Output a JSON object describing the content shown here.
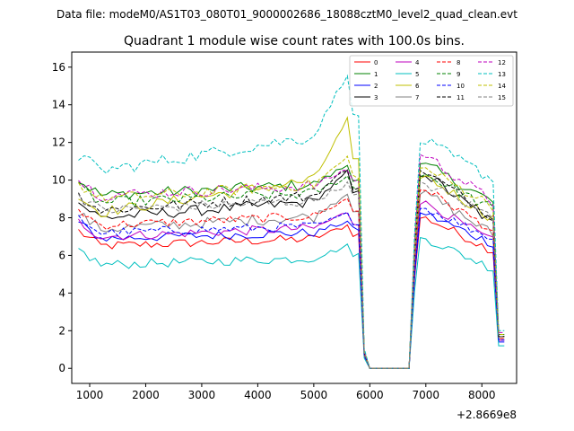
{
  "chart_data": {
    "type": "line",
    "suptitle": "Data file: modeM0/AS1T03_080T01_9000002686_18088cztM0_level2_quad_clean.evt",
    "title": "Quadrant 1 module wise count rates with 100.0s bins.",
    "xlabel": "",
    "ylabel": "",
    "x_offset_label": "+2.8669e8",
    "x_range": [
      800,
      8400
    ],
    "xlim": [
      680,
      8620
    ],
    "ylim": [
      -0.8,
      16.8
    ],
    "x_ticks": [
      1000,
      2000,
      3000,
      4000,
      5000,
      6000,
      7000,
      8000
    ],
    "x_tick_labels": [
      "1000",
      "2000",
      "3000",
      "4000",
      "5000",
      "6000",
      "7000",
      "8000"
    ],
    "y_ticks": [
      0,
      2,
      4,
      6,
      8,
      10,
      12,
      14,
      16
    ],
    "y_tick_labels": [
      "0",
      "2",
      "4",
      "6",
      "8",
      "10",
      "12",
      "14",
      "16"
    ],
    "gap": {
      "drop_start": 5800,
      "zero_start": 6000,
      "zero_end": 6750,
      "rise_end": 6900,
      "end_drop": 8250
    },
    "legend": {
      "placement": "upper right",
      "columns": 4
    },
    "series": [
      {
        "name": "0",
        "color": "#ff0000",
        "dash": "solid",
        "level_start": 6.5,
        "level_peak": 7.6,
        "post_level": 8.0,
        "end_value": 1.5,
        "noise": 0.25
      },
      {
        "name": "1",
        "color": "#008000",
        "dash": "solid",
        "level_start": 9.2,
        "level_peak": 10.8,
        "post_level": 10.8,
        "end_value": 1.8,
        "noise": 0.3
      },
      {
        "name": "2",
        "color": "#0000ff",
        "dash": "solid",
        "level_start": 6.9,
        "level_peak": 7.8,
        "post_level": 8.2,
        "end_value": 1.4,
        "noise": 0.25
      },
      {
        "name": "3",
        "color": "#000000",
        "dash": "solid",
        "level_start": 8.0,
        "level_peak": 10.4,
        "post_level": 10.3,
        "end_value": 1.7,
        "noise": 0.3
      },
      {
        "name": "4",
        "color": "#bf00bf",
        "dash": "solid",
        "level_start": 7.0,
        "level_peak": 8.3,
        "post_level": 8.8,
        "end_value": 1.5,
        "noise": 0.25
      },
      {
        "name": "5",
        "color": "#00bfbf",
        "dash": "solid",
        "level_start": 5.5,
        "level_peak": 6.5,
        "post_level": 6.9,
        "end_value": 1.2,
        "noise": 0.25
      },
      {
        "name": "6",
        "color": "#bfbf00",
        "dash": "solid",
        "level_start": 8.3,
        "level_peak": 13.2,
        "post_level": 10.2,
        "end_value": 1.7,
        "noise": 0.3
      },
      {
        "name": "7",
        "color": "#808080",
        "dash": "solid",
        "level_start": 7.4,
        "level_peak": 9.3,
        "post_level": 9.3,
        "end_value": 1.6,
        "noise": 0.3
      },
      {
        "name": "8",
        "color": "#ff0000",
        "dash": "dashed",
        "level_start": 7.6,
        "level_peak": 9.0,
        "post_level": 9.5,
        "end_value": 1.6,
        "noise": 0.25
      },
      {
        "name": "9",
        "color": "#008000",
        "dash": "dashed",
        "level_start": 8.8,
        "level_peak": 10.2,
        "post_level": 10.3,
        "end_value": 1.7,
        "noise": 0.3
      },
      {
        "name": "10",
        "color": "#0000ff",
        "dash": "dashed",
        "level_start": 7.2,
        "level_peak": 8.2,
        "post_level": 8.5,
        "end_value": 1.5,
        "noise": 0.25
      },
      {
        "name": "11",
        "color": "#000000",
        "dash": "dashed",
        "level_start": 8.4,
        "level_peak": 10.6,
        "post_level": 10.4,
        "end_value": 1.7,
        "noise": 0.3
      },
      {
        "name": "12",
        "color": "#bf00bf",
        "dash": "dashed",
        "level_start": 9.2,
        "level_peak": 10.6,
        "post_level": 11.3,
        "end_value": 1.9,
        "noise": 0.3
      },
      {
        "name": "13",
        "color": "#00bfbf",
        "dash": "dashed",
        "level_start": 10.5,
        "level_peak": 15.7,
        "post_level": 12.0,
        "end_value": 2.0,
        "noise": 0.35
      },
      {
        "name": "14",
        "color": "#bfbf00",
        "dash": "dashed",
        "level_start": 9.0,
        "level_peak": 11.2,
        "post_level": 10.6,
        "end_value": 1.8,
        "noise": 0.3
      },
      {
        "name": "15",
        "color": "#808080",
        "dash": "dashed",
        "level_start": 8.4,
        "level_peak": 9.8,
        "post_level": 9.8,
        "end_value": 1.7,
        "noise": 0.3
      }
    ]
  }
}
